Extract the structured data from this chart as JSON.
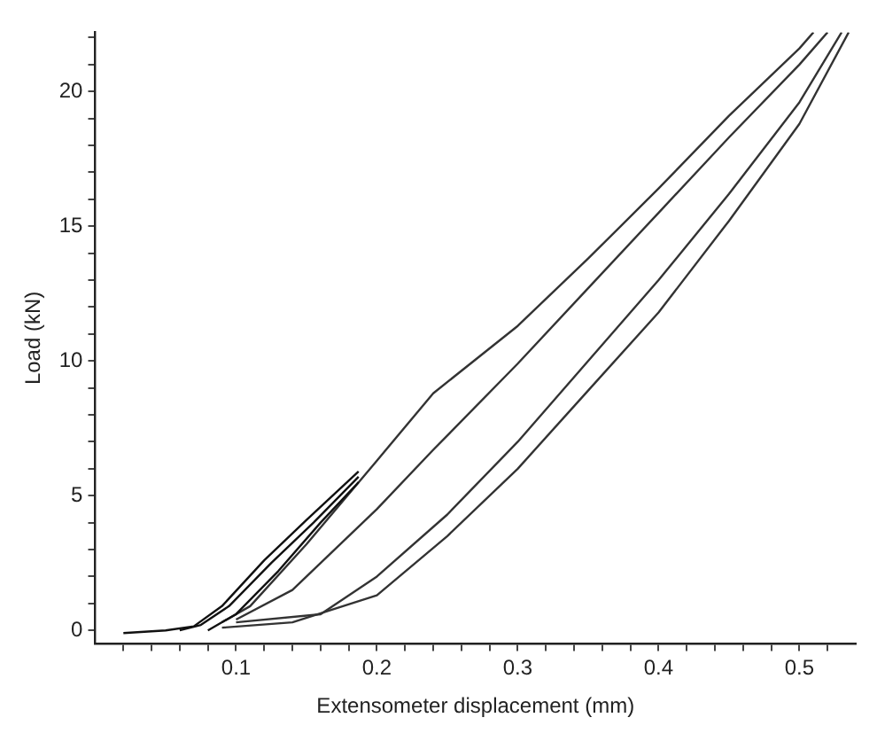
{
  "chart_data": {
    "type": "line",
    "xlabel": "Extensometer displacement (mm)",
    "ylabel": "Load (kN)",
    "xlim": [
      0.0,
      0.54
    ],
    "ylim": [
      -0.5,
      22.2
    ],
    "xticks": [
      {
        "value": 0.02,
        "label": null
      },
      {
        "value": 0.04,
        "label": null
      },
      {
        "value": 0.06,
        "label": null
      },
      {
        "value": 0.08,
        "label": null
      },
      0.1,
      {
        "value": 0.12,
        "label": null
      },
      {
        "value": 0.14,
        "label": null
      },
      {
        "value": 0.16,
        "label": null
      },
      {
        "value": 0.18,
        "label": null
      },
      0.2,
      {
        "value": 0.22,
        "label": null
      },
      {
        "value": 0.24,
        "label": null
      },
      {
        "value": 0.26,
        "label": null
      },
      {
        "value": 0.28,
        "label": null
      },
      0.3,
      {
        "value": 0.32,
        "label": null
      },
      {
        "value": 0.34,
        "label": null
      },
      {
        "value": 0.36,
        "label": null
      },
      {
        "value": 0.38,
        "label": null
      },
      0.4,
      {
        "value": 0.42,
        "label": null
      },
      {
        "value": 0.44,
        "label": null
      },
      {
        "value": 0.46,
        "label": null
      },
      {
        "value": 0.48,
        "label": null
      },
      0.5,
      {
        "value": 0.52,
        "label": null
      }
    ],
    "yticks": [
      0,
      {
        "value": 1,
        "label": null
      },
      {
        "value": 2,
        "label": null
      },
      {
        "value": 3,
        "label": null
      },
      {
        "value": 4,
        "label": null
      },
      5,
      {
        "value": 6,
        "label": null
      },
      {
        "value": 7,
        "label": null
      },
      {
        "value": 8,
        "label": null
      },
      {
        "value": 9,
        "label": null
      },
      10,
      {
        "value": 11,
        "label": null
      },
      {
        "value": 12,
        "label": null
      },
      {
        "value": 13,
        "label": null
      },
      {
        "value": 14,
        "label": null
      },
      15,
      {
        "value": 16,
        "label": null
      },
      {
        "value": 17,
        "label": null
      },
      {
        "value": 18,
        "label": null
      },
      {
        "value": 19,
        "label": null
      },
      20,
      {
        "value": 21,
        "label": null
      },
      {
        "value": 22,
        "label": null
      }
    ],
    "grid": false,
    "legend": false,
    "marker": "none",
    "line_style": "solid",
    "series": [
      {
        "color": "#111111",
        "x": [
          0.02,
          0.05,
          0.07,
          0.09,
          0.12,
          0.15,
          0.187
        ],
        "values": [
          -0.1,
          0,
          0.15,
          0.9,
          2.6,
          4.1,
          5.9
        ]
      },
      {
        "color": "#111111",
        "x": [
          0.06,
          0.075,
          0.095,
          0.125,
          0.155,
          0.187
        ],
        "values": [
          0,
          0.2,
          0.9,
          2.5,
          4.0,
          5.7
        ]
      },
      {
        "color": "#111111",
        "x": [
          0.08,
          0.1,
          0.13,
          0.16,
          0.187
        ],
        "values": [
          0,
          0.6,
          2.2,
          4.0,
          5.5
        ]
      },
      {
        "color": "#333333",
        "x": [
          0.09,
          0.11,
          0.15,
          0.2,
          0.24,
          0.3,
          0.35,
          0.4,
          0.45,
          0.5,
          0.51
        ],
        "values": [
          0.3,
          0.9,
          3.2,
          6.3,
          8.8,
          11.3,
          13.8,
          16.4,
          19.1,
          21.6,
          22.2
        ]
      },
      {
        "color": "#333333",
        "x": [
          0.1,
          0.14,
          0.2,
          0.24,
          0.3,
          0.35,
          0.4,
          0.45,
          0.5,
          0.52
        ],
        "values": [
          0.4,
          1.5,
          4.5,
          6.7,
          9.9,
          12.7,
          15.5,
          18.3,
          21.0,
          22.2
        ]
      },
      {
        "color": "#333333",
        "x": [
          0.1,
          0.16,
          0.2,
          0.25,
          0.3,
          0.35,
          0.4,
          0.45,
          0.5,
          0.53
        ],
        "values": [
          0.3,
          0.6,
          2.0,
          4.3,
          7.0,
          10.0,
          13.0,
          16.2,
          19.6,
          22.2
        ]
      },
      {
        "color": "#333333",
        "x": [
          0.09,
          0.14,
          0.2,
          0.25,
          0.3,
          0.35,
          0.4,
          0.45,
          0.5,
          0.535
        ],
        "values": [
          0.1,
          0.3,
          1.3,
          3.5,
          6.0,
          8.9,
          11.8,
          15.2,
          18.8,
          22.2
        ]
      }
    ]
  }
}
